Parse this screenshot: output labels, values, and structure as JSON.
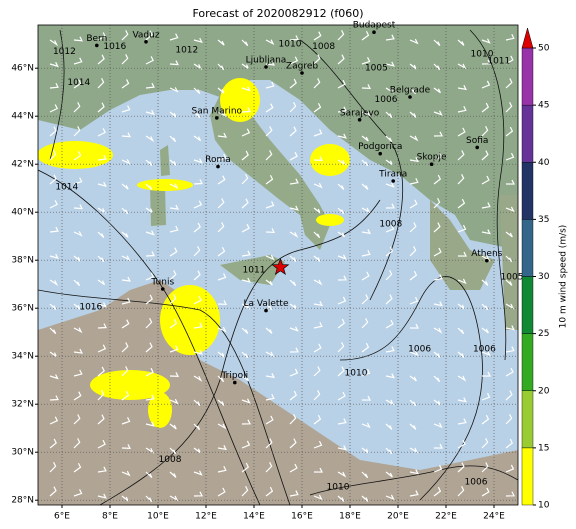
{
  "title": "Forecast of 2020082912 (f060)",
  "map": {
    "xlim": [
      5,
      25
    ],
    "ylim": [
      27.8,
      47.8
    ],
    "xticks": [
      {
        "value": 6,
        "label": "6°E"
      },
      {
        "value": 8,
        "label": "8°E"
      },
      {
        "value": 10,
        "label": "10°E"
      },
      {
        "value": 12,
        "label": "12°E"
      },
      {
        "value": 14,
        "label": "14°E"
      },
      {
        "value": 16,
        "label": "16°E"
      },
      {
        "value": 18,
        "label": "18°E"
      },
      {
        "value": 20,
        "label": "20°E"
      },
      {
        "value": 22,
        "label": "22°E"
      },
      {
        "value": 24,
        "label": "24°E"
      }
    ],
    "yticks": [
      {
        "value": 28,
        "label": "28°N"
      },
      {
        "value": 30,
        "label": "30°N"
      },
      {
        "value": 32,
        "label": "32°N"
      },
      {
        "value": 34,
        "label": "34°N"
      },
      {
        "value": 36,
        "label": "36°N"
      },
      {
        "value": 38,
        "label": "38°N"
      },
      {
        "value": 40,
        "label": "40°N"
      },
      {
        "value": 42,
        "label": "42°N"
      },
      {
        "value": 44,
        "label": "44°N"
      },
      {
        "value": 46,
        "label": "46°N"
      }
    ],
    "grid": true,
    "cities": [
      {
        "name": "Bern",
        "lon": 7.45,
        "lat": 46.95
      },
      {
        "name": "Vaduz",
        "lon": 9.5,
        "lat": 47.1
      },
      {
        "name": "Budapest",
        "lon": 19.0,
        "lat": 47.5
      },
      {
        "name": "Ljubljana",
        "lon": 14.5,
        "lat": 46.05
      },
      {
        "name": "Zagreb",
        "lon": 16.0,
        "lat": 45.8
      },
      {
        "name": "Belgrade",
        "lon": 20.5,
        "lat": 44.8
      },
      {
        "name": "San Marino",
        "lon": 12.45,
        "lat": 43.93
      },
      {
        "name": "Sarajevo",
        "lon": 18.4,
        "lat": 43.85
      },
      {
        "name": "Sofia",
        "lon": 23.3,
        "lat": 42.7
      },
      {
        "name": "Podgorica",
        "lon": 19.26,
        "lat": 42.44
      },
      {
        "name": "Skopje",
        "lon": 21.4,
        "lat": 42.0
      },
      {
        "name": "Roma",
        "lon": 12.5,
        "lat": 41.9
      },
      {
        "name": "Tirana",
        "lon": 19.8,
        "lat": 41.3
      },
      {
        "name": "Athens",
        "lon": 23.7,
        "lat": 37.98
      },
      {
        "name": "Tunis",
        "lon": 10.2,
        "lat": 36.8
      },
      {
        "name": "La Valette",
        "lon": 14.5,
        "lat": 35.9
      },
      {
        "name": "Tripoli",
        "lon": 13.2,
        "lat": 32.9
      }
    ],
    "isobar_labels": [
      {
        "value": 1012,
        "lon": 6.1,
        "lat": 46.7
      },
      {
        "value": 1016,
        "lon": 8.2,
        "lat": 46.9
      },
      {
        "value": 1012,
        "lon": 11.2,
        "lat": 46.75
      },
      {
        "value": 1014,
        "lon": 6.7,
        "lat": 45.4
      },
      {
        "value": 1010,
        "lon": 15.5,
        "lat": 47.0
      },
      {
        "value": 1008,
        "lon": 16.9,
        "lat": 46.9
      },
      {
        "value": 1005,
        "lon": 19.1,
        "lat": 46.0
      },
      {
        "value": 1006,
        "lon": 19.5,
        "lat": 44.7
      },
      {
        "value": 1010,
        "lon": 23.5,
        "lat": 46.6
      },
      {
        "value": 1011,
        "lon": 24.2,
        "lat": 46.3
      },
      {
        "value": 1014,
        "lon": 6.2,
        "lat": 41.05
      },
      {
        "value": 1008,
        "lon": 19.7,
        "lat": 39.5
      },
      {
        "value": 1011,
        "lon": 14.0,
        "lat": 37.6
      },
      {
        "value": 1005,
        "lon": 24.75,
        "lat": 37.3
      },
      {
        "value": 1016,
        "lon": 7.2,
        "lat": 36.05
      },
      {
        "value": 1006,
        "lon": 20.9,
        "lat": 34.3
      },
      {
        "value": 1006,
        "lon": 23.6,
        "lat": 34.3
      },
      {
        "value": 1010,
        "lon": 18.25,
        "lat": 33.3
      },
      {
        "value": 1008,
        "lon": 10.5,
        "lat": 29.7
      },
      {
        "value": 1010,
        "lon": 17.5,
        "lat": 28.55
      },
      {
        "value": 1006,
        "lon": 23.25,
        "lat": 28.75
      }
    ],
    "marker": {
      "lon": 15.1,
      "lat": 37.7,
      "color": "#dd0000"
    }
  },
  "colorbar": {
    "label": "10 m wind speed (m/s)",
    "ticks": [
      10,
      15,
      20,
      25,
      30,
      35,
      40,
      45,
      50
    ],
    "colors": [
      "#ffff00",
      "#99cc33",
      "#33aa22",
      "#118833",
      "#336688",
      "#223366",
      "#663399",
      "#9933aa"
    ],
    "extend_color": "#dd0000"
  }
}
